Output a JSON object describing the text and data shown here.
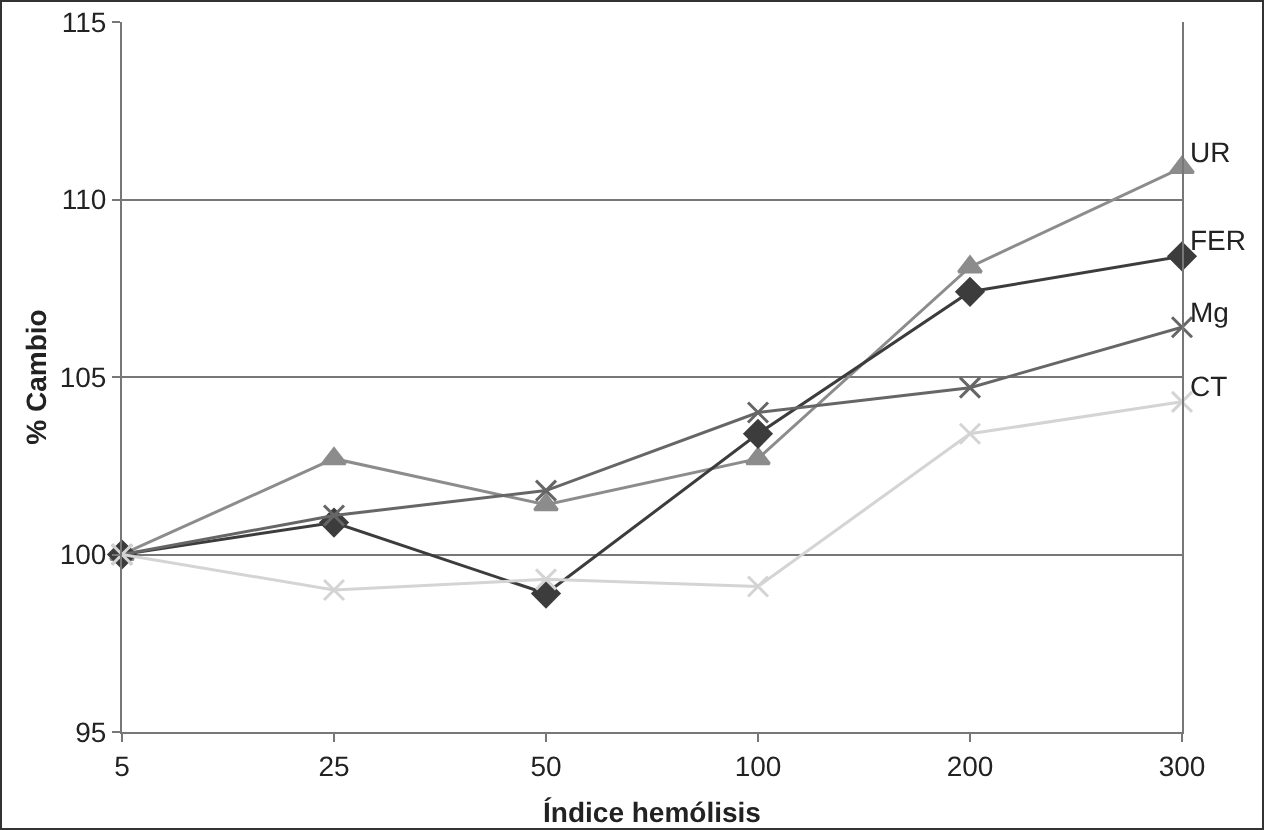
{
  "chart_data": {
    "type": "line",
    "xlabel": "Índice hemólisis",
    "ylabel": "% Cambio",
    "categories": [
      "5",
      "25",
      "50",
      "100",
      "200",
      "300"
    ],
    "ylim": [
      95,
      115
    ],
    "yticks": [
      95,
      100,
      105,
      110,
      115
    ],
    "grid": "y",
    "legend": false,
    "series": [
      {
        "name": "UR",
        "color": "#8c8c8c",
        "marker": "triangle",
        "values": [
          100,
          102.7,
          101.4,
          102.7,
          108.1,
          110.9
        ]
      },
      {
        "name": "FER",
        "color": "#3c3c3c",
        "marker": "diamond",
        "values": [
          100,
          100.9,
          98.9,
          103.4,
          107.4,
          108.4
        ]
      },
      {
        "name": "Mg",
        "color": "#666666",
        "marker": "cross",
        "values": [
          100,
          101.1,
          101.8,
          104.0,
          104.7,
          106.4
        ]
      },
      {
        "name": "CT",
        "color": "#d4d4d4",
        "marker": "cross",
        "values": [
          100,
          99.0,
          99.3,
          99.1,
          103.4,
          104.3
        ]
      }
    ]
  }
}
